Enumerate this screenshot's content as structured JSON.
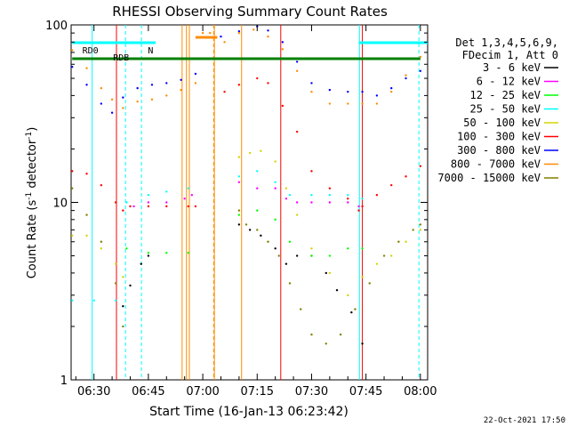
{
  "chart_data": {
    "type": "line",
    "title": "RHESSI Observing Summary Count Rates",
    "xlabel": "Start Time (16-Jan-13 06:23:42)",
    "ylabel_parts": {
      "base": "Count Rate (s",
      "exp1": "-1",
      "mid": " detector",
      "exp2": "-1",
      "end": ")"
    },
    "footer_date": "22-Oct-2021 17:50",
    "y_scale": "log",
    "ylim": [
      1,
      100
    ],
    "y_ticks": [
      1,
      10,
      100
    ],
    "x_range_minutes": [
      23.7,
      122
    ],
    "x_ticks": [
      {
        "label": "06:30",
        "minutes": 30
      },
      {
        "label": "06:45",
        "minutes": 45
      },
      {
        "label": "07:00",
        "minutes": 60
      },
      {
        "label": "07:15",
        "minutes": 75
      },
      {
        "label": "07:30",
        "minutes": 90
      },
      {
        "label": "07:45",
        "minutes": 105
      },
      {
        "label": "08:00",
        "minutes": 120
      }
    ],
    "legend": {
      "position": "right",
      "header": [
        "Det 1,3,4,5,6,9,",
        "FDecim 1, Att 0"
      ],
      "entries": [
        {
          "name": "3 - 6 keV",
          "color": "#000000"
        },
        {
          "name": "6 - 12 keV",
          "color": "#ff00ff"
        },
        {
          "name": "12 - 25 keV",
          "color": "#00ff00"
        },
        {
          "name": "25 - 50 keV",
          "color": "#00ffff"
        },
        {
          "name": "50 - 100 keV",
          "color": "#d4d400"
        },
        {
          "name": "100 - 300 keV",
          "color": "#ff0000"
        },
        {
          "name": "300 - 800 keV",
          "color": "#0000ff"
        },
        {
          "name": "800 - 7000 keV",
          "color": "#ff8c00"
        },
        {
          "name": "7000 - 15000 keV",
          "color": "#808000"
        }
      ]
    },
    "annotations": [
      {
        "text": "RD0",
        "minutes": 29
      },
      {
        "text": "RDB",
        "minutes": 37.5
      },
      {
        "text": "N",
        "minutes": 45.6
      }
    ],
    "series": [
      {
        "name": "3 - 6 keV",
        "color": "#000000",
        "x": [
          38,
          40,
          43,
          45,
          70,
          73,
          76,
          80,
          83,
          86,
          90,
          94,
          97,
          101,
          104
        ],
        "y": [
          2.6,
          3.4,
          4.5,
          5,
          7.5,
          7,
          6.5,
          5.5,
          4.5,
          5,
          5,
          4,
          3.2,
          2.4,
          1.6
        ]
      },
      {
        "name": "6 - 12 keV",
        "color": "#ff00ff",
        "x": [
          41,
          45,
          50,
          55,
          57,
          70,
          75,
          80,
          83,
          86,
          90,
          95,
          100,
          103
        ],
        "y": [
          9.5,
          10,
          10,
          10.5,
          11,
          13,
          12,
          12,
          10.5,
          10,
          10,
          10,
          10,
          9.5
        ]
      },
      {
        "name": "12 - 25 keV",
        "color": "#00ff00",
        "x": [
          39,
          45,
          50,
          56,
          70,
          75,
          80,
          84,
          90,
          95,
          100,
          104
        ],
        "y": [
          5.5,
          5.2,
          5.2,
          5.2,
          8.5,
          9,
          8,
          6,
          5,
          5,
          5.5,
          5.5
        ]
      },
      {
        "name": "25 - 50 keV",
        "color": "#00ffff",
        "x": [
          24,
          30,
          36,
          39,
          45,
          50,
          56,
          70,
          75,
          80,
          84,
          90,
          95,
          100,
          104
        ],
        "y": [
          2.8,
          2.8,
          2.8,
          10,
          11,
          11.5,
          12,
          14,
          15,
          13,
          11,
          11,
          11,
          11,
          10.5
        ]
      },
      {
        "name": "50 - 100 keV",
        "color": "#d4d400",
        "x": [
          24,
          28,
          32,
          36,
          38,
          70,
          73,
          76,
          80,
          83,
          86,
          90,
          95,
          100,
          104,
          108,
          112,
          116,
          120
        ],
        "y": [
          6.5,
          6.5,
          5.5,
          4.5,
          3.8,
          18,
          19,
          19.5,
          17,
          12,
          8.5,
          5.5,
          4,
          3,
          3.8,
          4.5,
          5,
          6,
          7
        ]
      },
      {
        "name": "100 - 300 keV",
        "color": "#ff0000",
        "x": [
          24,
          28,
          32,
          36,
          38,
          40,
          45,
          50,
          56,
          58,
          66,
          70,
          75,
          78,
          82,
          86,
          90,
          95,
          100,
          103,
          104,
          108,
          112,
          116,
          120
        ],
        "y": [
          15,
          14.5,
          12.5,
          10,
          9,
          9.5,
          9.5,
          9.5,
          9.5,
          9.5,
          42,
          46,
          50,
          47,
          35,
          25,
          15,
          12,
          10.5,
          9,
          9.5,
          11,
          12.5,
          14,
          16
        ]
      },
      {
        "name": "300 - 800 keV",
        "color": "#0000ff",
        "x": [
          24,
          28,
          32,
          35,
          38,
          42,
          46,
          50,
          54,
          58,
          65,
          70,
          75,
          78,
          82,
          86,
          90,
          95,
          100,
          104,
          108,
          112,
          116,
          120
        ],
        "y": [
          58,
          46,
          36,
          32,
          39,
          44,
          46,
          47,
          49,
          53,
          86,
          92,
          98,
          93,
          80,
          62,
          47,
          43,
          42,
          42,
          40,
          44,
          50,
          55
        ]
      },
      {
        "name": "800 - 7000 keV",
        "color": "#ff8c00",
        "x": [
          24,
          28,
          32,
          35,
          38,
          42,
          46,
          50,
          54,
          58,
          60,
          62,
          66,
          70,
          74,
          78,
          82,
          86,
          90,
          95,
          100,
          104,
          108,
          112,
          116,
          120
        ],
        "y": [
          72,
          57,
          44,
          38,
          34,
          37,
          38,
          40,
          43,
          47,
          90,
          90,
          80,
          90,
          94,
          86,
          73,
          55,
          42,
          36,
          36,
          36,
          36,
          42,
          52,
          66
        ]
      },
      {
        "name": "7000 - 15000 keV",
        "color": "#808000",
        "x": [
          24,
          28,
          32,
          36,
          38,
          70,
          72,
          75,
          78,
          81,
          84,
          87,
          90,
          94,
          98,
          102,
          106,
          110,
          114,
          118,
          120
        ],
        "y": [
          12,
          8.5,
          6,
          3.5,
          2,
          9,
          7.5,
          7,
          6,
          5,
          3.5,
          2.5,
          1.8,
          1.6,
          1.8,
          2.5,
          3.5,
          5,
          6,
          7,
          7.5
        ]
      }
    ]
  }
}
